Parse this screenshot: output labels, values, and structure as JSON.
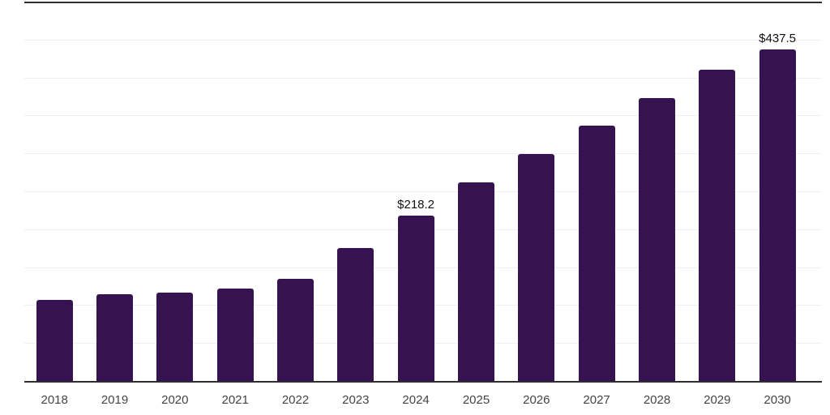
{
  "chart_data": {
    "type": "bar",
    "title": "",
    "xlabel": "",
    "ylabel": "",
    "categories": [
      "2018",
      "2019",
      "2020",
      "2021",
      "2022",
      "2023",
      "2024",
      "2025",
      "2026",
      "2027",
      "2028",
      "2029",
      "2030"
    ],
    "values": [
      107.4,
      114.8,
      116.2,
      121.8,
      134.3,
      175.0,
      218.2,
      262.0,
      299.4,
      336.7,
      373.0,
      410.0,
      437.5
    ],
    "value_labels": [
      "",
      "",
      "",
      "",
      "",
      "",
      "$218.2",
      "",
      "",
      "",
      "",
      "",
      "$437.5"
    ],
    "ylim": [
      0,
      500
    ],
    "gridline_step": 50,
    "grid": true,
    "legend": false,
    "colors": {
      "bar": "#361350",
      "grid": "#f0f0f0",
      "axis": "#2e2e2e",
      "plot_top_border": "#2e2e2e",
      "value_label": "#111111",
      "tick_label": "#444444",
      "background": "#ffffff"
    }
  }
}
